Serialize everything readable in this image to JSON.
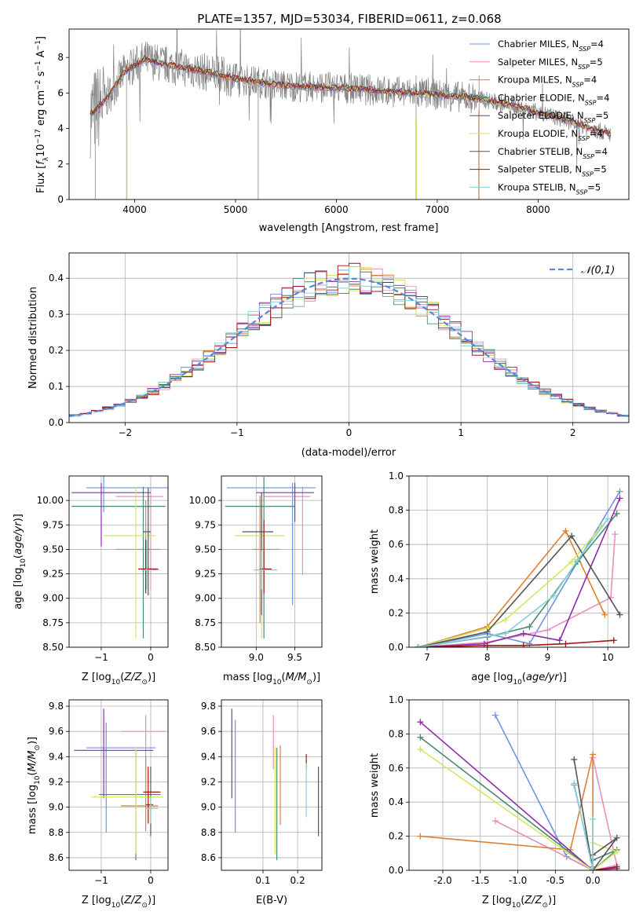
{
  "title": "PLATE=1357, MJD=53034, FIBERID=0611, z=0.068",
  "series_colors": [
    "#6f93e0",
    "#e88fc0",
    "#e08030",
    "#4a8a6f",
    "#8b2fa8",
    "#cfe860",
    "#555555",
    "#a31515",
    "#86cfd6"
  ],
  "legend_labels": [
    "Chabrier MILES, N_SSP=4",
    "Salpeter MILES, N_SSP=5",
    "Kroupa MILES, N_SSP=4",
    "Chabrier ELODIE, N_SSP=4",
    "Salpeter ELODIE, N_SSP=5",
    "Kroupa ELODIE, N_SSP=4",
    "Chabrier STELIB, N_SSP=4",
    "Salpeter STELIB, N_SSP=5",
    "Kroupa STELIB, N_SSP=5"
  ],
  "chart_data": [
    {
      "id": "spectrum",
      "type": "line",
      "xlabel": "wavelength [Angstrom, rest frame]",
      "ylabel": "Flux [f_λ 10^-17 erg cm^-2 s^-1 A^-1]",
      "xlim": [
        3350,
        8900
      ],
      "ylim": [
        0,
        9.6
      ],
      "xticks": [
        4000,
        5000,
        6000,
        7000,
        8000
      ],
      "yticks": [
        0,
        2,
        4,
        6,
        8
      ],
      "model_anchor_points": {
        "x": [
          3560,
          3700,
          3900,
          4100,
          4300,
          4600,
          5000,
          5500,
          6000,
          6500,
          7000,
          7400,
          7800,
          8200,
          8700
        ],
        "y": [
          4.8,
          5.5,
          7.2,
          7.9,
          7.6,
          7.3,
          6.8,
          6.4,
          6.3,
          6.1,
          5.9,
          5.7,
          5.2,
          4.6,
          3.7
        ]
      }
    },
    {
      "id": "residuals",
      "type": "line",
      "xlabel": "(data-model)/error",
      "ylabel": "Normed distribution",
      "xlim": [
        -2.5,
        2.5
      ],
      "ylim": [
        0,
        0.47
      ],
      "xticks": [
        -2,
        -1,
        0,
        1,
        2
      ],
      "yticks": [
        0.0,
        0.1,
        0.2,
        0.3,
        0.4
      ],
      "reference_label": "𝒩(0,1)",
      "reference": "standard normal curve",
      "bin_width": 0.1,
      "legend": "top-right"
    },
    {
      "id": "age_vs_Z",
      "type": "scatter",
      "xlabel": "Z [log10(Z/Z☉)]",
      "ylabel": "age  [log10(age/yr)]",
      "xlim": [
        -1.65,
        0.35
      ],
      "ylim": [
        8.5,
        10.25
      ],
      "xticks": [
        -1,
        0
      ],
      "yticks": [
        8.5,
        8.75,
        9.0,
        9.25,
        9.5,
        9.75,
        10.0
      ],
      "points": [
        {
          "x": -0.95,
          "y": 10.13,
          "xerr": [
            0.35,
            1.35
          ],
          "yerr": [
            0.25,
            0.12
          ]
        },
        {
          "x": 0.0,
          "y": 10.04,
          "xerr": [
            0.7,
            0.25
          ],
          "yerr": [
            0.95,
            0.1
          ]
        },
        {
          "x": -0.1,
          "y": 9.5,
          "xerr": [
            0.6,
            0.3
          ],
          "yerr": [
            0.2,
            0.5
          ]
        },
        {
          "x": -0.15,
          "y": 9.94,
          "xerr": [
            1.45,
            0.45
          ],
          "yerr": [
            1.35,
            0.2
          ]
        },
        {
          "x": -1.0,
          "y": 10.08,
          "xerr": [
            0.6,
            1.0
          ],
          "yerr": [
            0.55,
            0.1
          ]
        },
        {
          "x": -0.3,
          "y": 9.64,
          "xerr": [
            0.65,
            0.4
          ],
          "yerr": [
            1.05,
            0.5
          ]
        },
        {
          "x": -0.05,
          "y": 9.68,
          "xerr": [
            0.1,
            0.05
          ],
          "yerr": [
            0.65,
            0.45
          ]
        },
        {
          "x": -0.1,
          "y": 9.3,
          "xerr": [
            0.15,
            0.25
          ],
          "yerr": [
            0.25,
            0.3
          ]
        },
        {
          "x": -0.08,
          "y": 9.29,
          "xerr": [
            0.1,
            0.25
          ],
          "yerr": [
            0.2,
            0.3
          ]
        }
      ]
    },
    {
      "id": "age_vs_mass",
      "type": "scatter",
      "xlabel": "mass [log10(M/M☉)]",
      "ylabel": "",
      "xlim": [
        8.55,
        9.85
      ],
      "ylim": [
        8.5,
        10.25
      ],
      "xticks": [
        9.0,
        9.5
      ],
      "yticks": [
        8.5,
        8.75,
        9.0,
        9.25,
        9.5,
        9.75,
        10.0
      ],
      "points": [
        {
          "x": 9.47,
          "y": 10.13,
          "xerr": [
            0.85,
            0.3
          ],
          "yerr": [
            1.2,
            0.05
          ]
        },
        {
          "x": 9.6,
          "y": 10.04,
          "xerr": [
            0.5,
            0.1
          ],
          "yerr": [
            0.8,
            0.1
          ]
        },
        {
          "x": 9.05,
          "y": 9.5,
          "xerr": [
            0.1,
            0.25
          ],
          "yerr": [
            0.75,
            0.55
          ]
        },
        {
          "x": 9.1,
          "y": 9.94,
          "xerr": [
            0.5,
            0.4
          ],
          "yerr": [
            1.35,
            0.3
          ]
        },
        {
          "x": 9.5,
          "y": 10.08,
          "xerr": [
            0.5,
            0.25
          ],
          "yerr": [
            0.3,
            0.1
          ]
        },
        {
          "x": 9.07,
          "y": 9.64,
          "xerr": [
            0.35,
            0.3
          ],
          "yerr": [
            1.05,
            0.3
          ]
        },
        {
          "x": 9.07,
          "y": 9.68,
          "xerr": [
            0.25,
            0.15
          ],
          "yerr": [
            0.85,
            0.4
          ]
        },
        {
          "x": 9.1,
          "y": 9.3,
          "xerr": [
            0.05,
            0.1
          ],
          "yerr": [
            0.25,
            0.5
          ]
        },
        {
          "x": 9.07,
          "y": 9.29,
          "xerr": [
            0.1,
            0.2
          ],
          "yerr": [
            0.2,
            0.2
          ]
        }
      ]
    },
    {
      "id": "mass_weight_vs_age",
      "type": "line",
      "xlabel": "age  [log10(age/yr)]",
      "ylabel": "mass weight",
      "xlim": [
        6.7,
        10.35
      ],
      "ylim": [
        0,
        1.0
      ],
      "xticks": [
        7,
        8,
        9,
        10
      ],
      "yticks": [
        0.0,
        0.2,
        0.4,
        0.6,
        0.8,
        1.0
      ],
      "series": [
        {
          "x": [
            6.85,
            8.0,
            8.7,
            9.5,
            10.2
          ],
          "y": [
            0.0,
            0.08,
            0.02,
            0.5,
            0.91
          ]
        },
        {
          "x": [
            6.85,
            8.0,
            9.0,
            10.05,
            10.12
          ],
          "y": [
            0.0,
            0.03,
            0.1,
            0.29,
            0.66
          ]
        },
        {
          "x": [
            6.85,
            8.0,
            9.3,
            9.95
          ],
          "y": [
            0.0,
            0.12,
            0.68,
            0.19
          ]
        },
        {
          "x": [
            6.85,
            8.0,
            8.7,
            9.5,
            10.15
          ],
          "y": [
            0.0,
            0.06,
            0.12,
            0.5,
            0.78
          ]
        },
        {
          "x": [
            6.85,
            7.95,
            8.6,
            9.2,
            10.2
          ],
          "y": [
            0.0,
            0.02,
            0.08,
            0.04,
            0.87
          ]
        },
        {
          "x": [
            6.85,
            8.0,
            8.3,
            9.4,
            9.9
          ],
          "y": [
            0.0,
            0.11,
            0.16,
            0.5,
            0.71
          ]
        },
        {
          "x": [
            6.85,
            8.0,
            9.4,
            10.2
          ],
          "y": [
            0.0,
            0.09,
            0.65,
            0.19
          ]
        },
        {
          "x": [
            6.85,
            8.0,
            8.6,
            9.3,
            10.1
          ],
          "y": [
            0.0,
            0.01,
            0.01,
            0.02,
            0.04
          ]
        },
        {
          "x": [
            6.85,
            8.3,
            9.1,
            9.5,
            10.0
          ],
          "y": [
            0.0,
            0.08,
            0.3,
            0.51,
            0.75
          ]
        }
      ]
    },
    {
      "id": "mass_vs_Z",
      "type": "scatter",
      "xlabel": "Z [log10(Z/Z☉)]",
      "ylabel": "mass [log10(M/M☉)]",
      "xlim": [
        -1.65,
        0.35
      ],
      "ylim": [
        8.5,
        9.85
      ],
      "xticks": [
        -1,
        0
      ],
      "yticks": [
        8.6,
        8.8,
        9.0,
        9.2,
        9.4,
        9.6,
        9.8
      ],
      "points": [
        {
          "x": -0.9,
          "y": 9.47,
          "xerr": [
            0.4,
            1.0
          ],
          "yerr": [
            0.67,
            0.2
          ]
        },
        {
          "x": -0.1,
          "y": 9.6,
          "xerr": [
            0.5,
            0.4
          ],
          "yerr": [
            0.3,
            0.13
          ]
        },
        {
          "x": -0.1,
          "y": 9.01,
          "xerr": [
            0.5,
            0.25
          ],
          "yerr": [
            0.2,
            0.4
          ]
        },
        {
          "x": -0.3,
          "y": 9.1,
          "xerr": [
            0.75,
            0.5
          ],
          "yerr": [
            0.52,
            0.35
          ]
        },
        {
          "x": -0.95,
          "y": 9.45,
          "xerr": [
            0.6,
            1.0
          ],
          "yerr": [
            0.38,
            0.33
          ]
        },
        {
          "x": -0.3,
          "y": 9.08,
          "xerr": [
            0.9,
            0.55
          ],
          "yerr": [
            0.45,
            0.4
          ]
        },
        {
          "x": 0.0,
          "y": 9.02,
          "xerr": [
            0.1,
            0.05
          ],
          "yerr": [
            0.25,
            0.3
          ]
        },
        {
          "x": -0.05,
          "y": 9.12,
          "xerr": [
            0.1,
            0.25
          ],
          "yerr": [
            0.25,
            0.2
          ]
        },
        {
          "x": 0.0,
          "y": 8.99,
          "xerr": [
            0.1,
            0.15
          ],
          "yerr": [
            0.12,
            0.1
          ]
        }
      ]
    },
    {
      "id": "mass_vs_ebv",
      "type": "scatter",
      "xlabel": "E(B-V)",
      "ylabel": "",
      "xlim": [
        -0.02,
        0.27
      ],
      "ylim": [
        8.5,
        9.85
      ],
      "xticks": [
        0.1,
        0.2
      ],
      "yticks": [
        8.6,
        8.8,
        9.0,
        9.2,
        9.4,
        9.6,
        9.8
      ],
      "points": [
        {
          "x": 0.02,
          "y": 9.47,
          "yerr": [
            0.67,
            0.22
          ]
        },
        {
          "x": 0.13,
          "y": 9.6,
          "yerr": [
            0.3,
            0.13
          ]
        },
        {
          "x": 0.15,
          "y": 9.01,
          "yerr": [
            0.15,
            0.48
          ]
        },
        {
          "x": 0.14,
          "y": 9.1,
          "yerr": [
            0.52,
            0.37
          ]
        },
        {
          "x": 0.01,
          "y": 9.45,
          "yerr": [
            0.38,
            0.33
          ]
        },
        {
          "x": 0.135,
          "y": 9.08,
          "yerr": [
            0.45,
            0.4
          ]
        },
        {
          "x": 0.26,
          "y": 9.02,
          "yerr": [
            0.25,
            0.3
          ]
        },
        {
          "x": 0.225,
          "y": 9.35,
          "yerr": [
            0.05,
            0.07
          ]
        },
        {
          "x": 0.225,
          "y": 9.12,
          "yerr": [
            0.2,
            0.23
          ]
        }
      ]
    },
    {
      "id": "mass_weight_vs_Z",
      "type": "line",
      "xlabel": "Z [log10(Z/Z☉)]",
      "ylabel": "mass weight",
      "xlim": [
        -2.45,
        0.48
      ],
      "ylim": [
        0,
        1.0
      ],
      "xticks": [
        -2.0,
        -1.5,
        -1.0,
        -0.5,
        0.0
      ],
      "yticks": [
        0.0,
        0.2,
        0.4,
        0.6,
        0.8,
        1.0
      ],
      "series": [
        {
          "x": [
            -1.3,
            -0.35,
            0.0,
            0.0,
            -0.25
          ],
          "y": [
            0.91,
            0.08,
            0.0,
            0.02,
            0.5
          ]
        },
        {
          "x": [
            -1.3,
            0.0,
            0.32,
            0.0
          ],
          "y": [
            0.29,
            0.0,
            0.03,
            0.66
          ]
        },
        {
          "x": [
            -2.3,
            -0.3,
            0.0,
            0.0
          ],
          "y": [
            0.2,
            0.12,
            0.68,
            0.0
          ]
        },
        {
          "x": [
            -2.3,
            0.0,
            0.32,
            0.0
          ],
          "y": [
            0.78,
            0.0,
            0.12,
            0.06
          ]
        },
        {
          "x": [
            -2.3,
            0.0,
            0.32
          ],
          "y": [
            0.87,
            0.0,
            0.01
          ]
        },
        {
          "x": [
            -2.3,
            0.0,
            0.32,
            0.0
          ],
          "y": [
            0.71,
            0.0,
            0.11,
            0.16
          ]
        },
        {
          "x": [
            -0.25,
            0.0,
            0.32,
            0.0
          ],
          "y": [
            0.65,
            0.0,
            0.19,
            0.09
          ]
        },
        {
          "x": [
            0.0,
            0.32
          ],
          "y": [
            0.0,
            0.02
          ]
        },
        {
          "x": [
            -0.25,
            0.0,
            0.0
          ],
          "y": [
            0.51,
            0.0,
            0.3
          ]
        }
      ]
    }
  ]
}
